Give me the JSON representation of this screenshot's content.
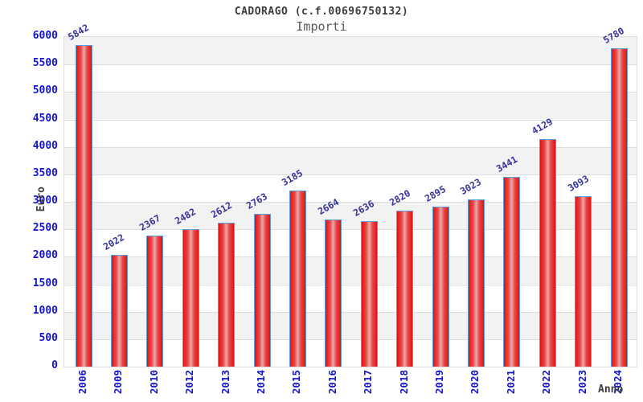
{
  "header": {
    "title": "CADORAGO (c.f.00696750132)",
    "subtitle": "Importi"
  },
  "chart_data": {
    "type": "bar",
    "title": "CADORAGO (c.f.00696750132)",
    "subtitle": "Importi",
    "xlabel": "Anno",
    "ylabel": "Euro",
    "ylim": [
      0,
      6000
    ],
    "yticks": [
      0,
      500,
      1000,
      1500,
      2000,
      2500,
      3000,
      3500,
      4000,
      4500,
      5000,
      5500,
      6000
    ],
    "categories": [
      "2006",
      "2009",
      "2010",
      "2012",
      "2013",
      "2014",
      "2015",
      "2016",
      "2017",
      "2018",
      "2019",
      "2020",
      "2021",
      "2022",
      "2023",
      "2024"
    ],
    "values": [
      5842,
      2022,
      2367,
      2482,
      2612,
      2763,
      3185,
      2664,
      2636,
      2820,
      2895,
      3023,
      3441,
      4129,
      3093,
      5780
    ],
    "bar_value_labels_shown": true,
    "grid": "horizontal",
    "legend": "none",
    "colors": {
      "bar_fill_edge": "#d31414",
      "bar_fill_center": "#f0a8a8",
      "bar_border": "#55a0dd",
      "tick_label_blue": "#1414cc",
      "value_label_navy": "#333399",
      "band_gray": "#f2f2f2",
      "band_white": "#ffffff",
      "grid_line": "#dcdcdc",
      "axis_title_gray": "#3d3d3d"
    }
  }
}
